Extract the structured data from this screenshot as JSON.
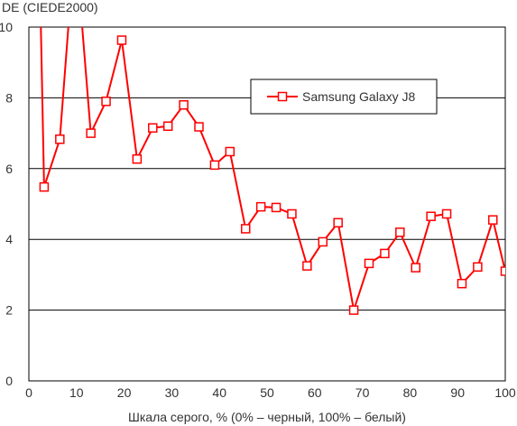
{
  "chart_data": {
    "type": "line",
    "ylabel": "DE (CIEDE2000)",
    "xlabel": "Шкала серого, % (0% – черный, 100% – белый)",
    "xlim": [
      0,
      100
    ],
    "ylim": [
      0,
      10
    ],
    "x_ticks": [
      0,
      10,
      20,
      30,
      40,
      50,
      60,
      70,
      80,
      90,
      100
    ],
    "y_ticks": [
      0,
      2,
      4,
      6,
      8,
      10
    ],
    "grid": "horizontal",
    "legend_position": "top-right",
    "series": [
      {
        "name": "Samsung Galaxy J8",
        "color": "#ff0000",
        "marker": "square",
        "points": [
          [
            2.3,
            11.5
          ],
          [
            3.2,
            5.48
          ],
          [
            6.5,
            6.83
          ],
          [
            9.7,
            12.5
          ],
          [
            13.0,
            7.0
          ],
          [
            16.2,
            7.9
          ],
          [
            19.5,
            9.63
          ],
          [
            22.7,
            6.27
          ],
          [
            26.0,
            7.15
          ],
          [
            29.2,
            7.2
          ],
          [
            32.5,
            7.8
          ],
          [
            35.7,
            7.18
          ],
          [
            39.0,
            6.1
          ],
          [
            42.2,
            6.48
          ],
          [
            45.5,
            4.3
          ],
          [
            48.7,
            4.92
          ],
          [
            51.9,
            4.9
          ],
          [
            55.2,
            4.72
          ],
          [
            58.4,
            3.25
          ],
          [
            61.7,
            3.93
          ],
          [
            64.9,
            4.47
          ],
          [
            68.2,
            2.0
          ],
          [
            71.4,
            3.32
          ],
          [
            74.7,
            3.6
          ],
          [
            77.9,
            4.2
          ],
          [
            81.2,
            3.2
          ],
          [
            84.4,
            4.65
          ],
          [
            87.7,
            4.72
          ],
          [
            90.9,
            2.75
          ],
          [
            94.2,
            3.22
          ],
          [
            97.4,
            4.55
          ],
          [
            100.0,
            3.1
          ]
        ]
      }
    ]
  }
}
